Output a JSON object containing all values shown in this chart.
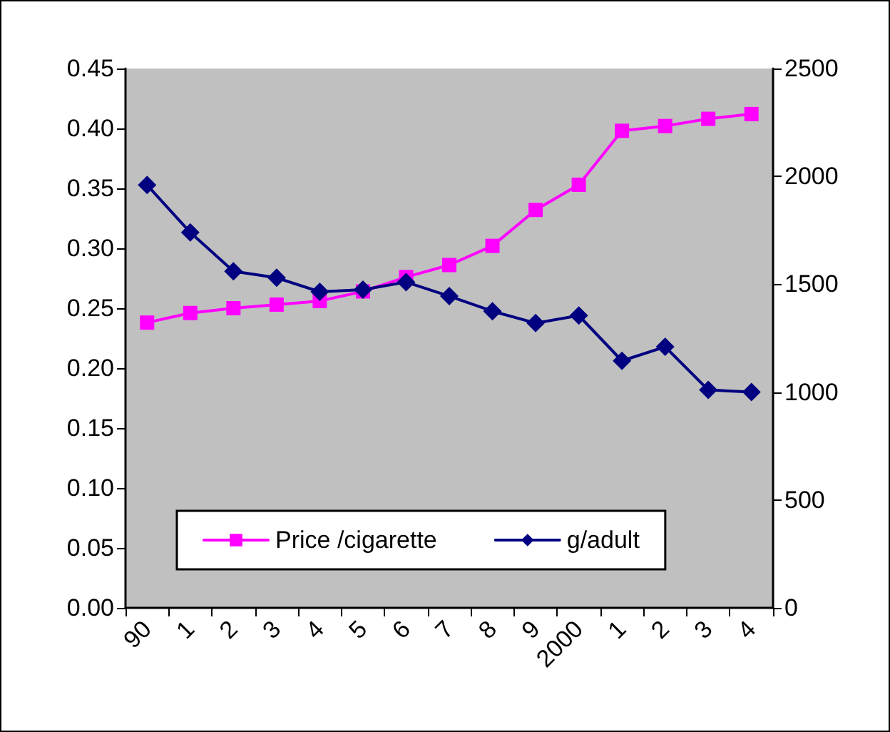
{
  "chart_data": {
    "type": "line",
    "categories": [
      "90",
      "1",
      "2",
      "3",
      "4",
      "5",
      "6",
      "7",
      "8",
      "9",
      "2000",
      "1",
      "2",
      "3",
      "4"
    ],
    "series": [
      {
        "name": "Price /cigarette",
        "color": "#ff00ff",
        "marker": "square",
        "values": [
          0.238,
          0.246,
          0.25,
          0.253,
          0.256,
          0.264,
          0.276,
          0.286,
          0.302,
          0.332,
          0.353,
          0.398,
          0.402,
          0.408,
          0.412
        ]
      },
      {
        "name": "g/adult",
        "color": "#000080",
        "marker": "diamond",
        "axis": "y2",
        "values": [
          1960,
          1740,
          1560,
          1530,
          1465,
          1475,
          1510,
          1445,
          1375,
          1320,
          1355,
          1145,
          1210,
          1010,
          1000
        ]
      }
    ],
    "ylim": [
      0,
      0.45
    ],
    "yticks": [
      {
        "value": 0,
        "label": "0.00"
      },
      {
        "value": 0.05,
        "label": "0.05"
      },
      {
        "value": 0.1,
        "label": "0.10"
      },
      {
        "value": 0.15,
        "label": "0.15"
      },
      {
        "value": 0.2,
        "label": "0.20"
      },
      {
        "value": 0.25,
        "label": "0.25"
      },
      {
        "value": 0.3,
        "label": "0.30"
      },
      {
        "value": 0.35,
        "label": "0.35"
      },
      {
        "value": 0.4,
        "label": "0.40"
      },
      {
        "value": 0.45,
        "label": "0.45"
      }
    ],
    "y2lim": [
      0,
      2500
    ],
    "y2ticks": [
      0,
      500,
      1000,
      1500,
      2000,
      2500
    ],
    "grid": false,
    "legend": "bottom",
    "line_style": "solid"
  }
}
